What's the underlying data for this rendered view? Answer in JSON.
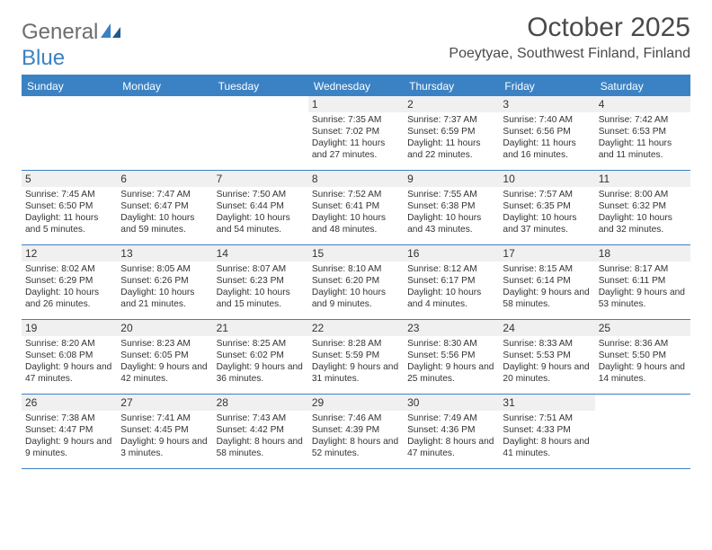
{
  "logo": {
    "text1": "General",
    "text2": "Blue"
  },
  "title": "October 2025",
  "location": "Poeytyae, Southwest Finland, Finland",
  "colors": {
    "accent": "#3b82c4",
    "dayRowBg": "#f0f0f0",
    "text": "#333333",
    "background": "#ffffff"
  },
  "dayNames": [
    "Sunday",
    "Monday",
    "Tuesday",
    "Wednesday",
    "Thursday",
    "Friday",
    "Saturday"
  ],
  "weeks": [
    [
      {
        "day": "",
        "sunrise": "",
        "sunset": "",
        "daylight": ""
      },
      {
        "day": "",
        "sunrise": "",
        "sunset": "",
        "daylight": ""
      },
      {
        "day": "",
        "sunrise": "",
        "sunset": "",
        "daylight": ""
      },
      {
        "day": "1",
        "sunrise": "Sunrise: 7:35 AM",
        "sunset": "Sunset: 7:02 PM",
        "daylight": "Daylight: 11 hours and 27 minutes."
      },
      {
        "day": "2",
        "sunrise": "Sunrise: 7:37 AM",
        "sunset": "Sunset: 6:59 PM",
        "daylight": "Daylight: 11 hours and 22 minutes."
      },
      {
        "day": "3",
        "sunrise": "Sunrise: 7:40 AM",
        "sunset": "Sunset: 6:56 PM",
        "daylight": "Daylight: 11 hours and 16 minutes."
      },
      {
        "day": "4",
        "sunrise": "Sunrise: 7:42 AM",
        "sunset": "Sunset: 6:53 PM",
        "daylight": "Daylight: 11 hours and 11 minutes."
      }
    ],
    [
      {
        "day": "5",
        "sunrise": "Sunrise: 7:45 AM",
        "sunset": "Sunset: 6:50 PM",
        "daylight": "Daylight: 11 hours and 5 minutes."
      },
      {
        "day": "6",
        "sunrise": "Sunrise: 7:47 AM",
        "sunset": "Sunset: 6:47 PM",
        "daylight": "Daylight: 10 hours and 59 minutes."
      },
      {
        "day": "7",
        "sunrise": "Sunrise: 7:50 AM",
        "sunset": "Sunset: 6:44 PM",
        "daylight": "Daylight: 10 hours and 54 minutes."
      },
      {
        "day": "8",
        "sunrise": "Sunrise: 7:52 AM",
        "sunset": "Sunset: 6:41 PM",
        "daylight": "Daylight: 10 hours and 48 minutes."
      },
      {
        "day": "9",
        "sunrise": "Sunrise: 7:55 AM",
        "sunset": "Sunset: 6:38 PM",
        "daylight": "Daylight: 10 hours and 43 minutes."
      },
      {
        "day": "10",
        "sunrise": "Sunrise: 7:57 AM",
        "sunset": "Sunset: 6:35 PM",
        "daylight": "Daylight: 10 hours and 37 minutes."
      },
      {
        "day": "11",
        "sunrise": "Sunrise: 8:00 AM",
        "sunset": "Sunset: 6:32 PM",
        "daylight": "Daylight: 10 hours and 32 minutes."
      }
    ],
    [
      {
        "day": "12",
        "sunrise": "Sunrise: 8:02 AM",
        "sunset": "Sunset: 6:29 PM",
        "daylight": "Daylight: 10 hours and 26 minutes."
      },
      {
        "day": "13",
        "sunrise": "Sunrise: 8:05 AM",
        "sunset": "Sunset: 6:26 PM",
        "daylight": "Daylight: 10 hours and 21 minutes."
      },
      {
        "day": "14",
        "sunrise": "Sunrise: 8:07 AM",
        "sunset": "Sunset: 6:23 PM",
        "daylight": "Daylight: 10 hours and 15 minutes."
      },
      {
        "day": "15",
        "sunrise": "Sunrise: 8:10 AM",
        "sunset": "Sunset: 6:20 PM",
        "daylight": "Daylight: 10 hours and 9 minutes."
      },
      {
        "day": "16",
        "sunrise": "Sunrise: 8:12 AM",
        "sunset": "Sunset: 6:17 PM",
        "daylight": "Daylight: 10 hours and 4 minutes."
      },
      {
        "day": "17",
        "sunrise": "Sunrise: 8:15 AM",
        "sunset": "Sunset: 6:14 PM",
        "daylight": "Daylight: 9 hours and 58 minutes."
      },
      {
        "day": "18",
        "sunrise": "Sunrise: 8:17 AM",
        "sunset": "Sunset: 6:11 PM",
        "daylight": "Daylight: 9 hours and 53 minutes."
      }
    ],
    [
      {
        "day": "19",
        "sunrise": "Sunrise: 8:20 AM",
        "sunset": "Sunset: 6:08 PM",
        "daylight": "Daylight: 9 hours and 47 minutes."
      },
      {
        "day": "20",
        "sunrise": "Sunrise: 8:23 AM",
        "sunset": "Sunset: 6:05 PM",
        "daylight": "Daylight: 9 hours and 42 minutes."
      },
      {
        "day": "21",
        "sunrise": "Sunrise: 8:25 AM",
        "sunset": "Sunset: 6:02 PM",
        "daylight": "Daylight: 9 hours and 36 minutes."
      },
      {
        "day": "22",
        "sunrise": "Sunrise: 8:28 AM",
        "sunset": "Sunset: 5:59 PM",
        "daylight": "Daylight: 9 hours and 31 minutes."
      },
      {
        "day": "23",
        "sunrise": "Sunrise: 8:30 AM",
        "sunset": "Sunset: 5:56 PM",
        "daylight": "Daylight: 9 hours and 25 minutes."
      },
      {
        "day": "24",
        "sunrise": "Sunrise: 8:33 AM",
        "sunset": "Sunset: 5:53 PM",
        "daylight": "Daylight: 9 hours and 20 minutes."
      },
      {
        "day": "25",
        "sunrise": "Sunrise: 8:36 AM",
        "sunset": "Sunset: 5:50 PM",
        "daylight": "Daylight: 9 hours and 14 minutes."
      }
    ],
    [
      {
        "day": "26",
        "sunrise": "Sunrise: 7:38 AM",
        "sunset": "Sunset: 4:47 PM",
        "daylight": "Daylight: 9 hours and 9 minutes."
      },
      {
        "day": "27",
        "sunrise": "Sunrise: 7:41 AM",
        "sunset": "Sunset: 4:45 PM",
        "daylight": "Daylight: 9 hours and 3 minutes."
      },
      {
        "day": "28",
        "sunrise": "Sunrise: 7:43 AM",
        "sunset": "Sunset: 4:42 PM",
        "daylight": "Daylight: 8 hours and 58 minutes."
      },
      {
        "day": "29",
        "sunrise": "Sunrise: 7:46 AM",
        "sunset": "Sunset: 4:39 PM",
        "daylight": "Daylight: 8 hours and 52 minutes."
      },
      {
        "day": "30",
        "sunrise": "Sunrise: 7:49 AM",
        "sunset": "Sunset: 4:36 PM",
        "daylight": "Daylight: 8 hours and 47 minutes."
      },
      {
        "day": "31",
        "sunrise": "Sunrise: 7:51 AM",
        "sunset": "Sunset: 4:33 PM",
        "daylight": "Daylight: 8 hours and 41 minutes."
      },
      {
        "day": "",
        "sunrise": "",
        "sunset": "",
        "daylight": ""
      }
    ]
  ]
}
